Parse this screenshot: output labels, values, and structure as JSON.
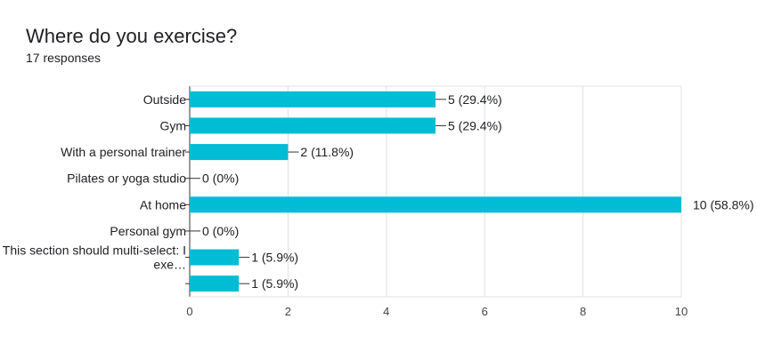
{
  "header": {
    "title": "Where do you exercise?",
    "responses": "17 responses"
  },
  "chart_data": {
    "type": "bar",
    "orientation": "horizontal",
    "categories": [
      "Outside",
      "Gym",
      "With a personal trainer",
      "Pilates or yoga studio",
      "At home",
      "Personal gym",
      "This section should multi-select: I exe…",
      ""
    ],
    "category_label_lines": [
      [
        "Outside"
      ],
      [
        "Gym"
      ],
      [
        "With a personal trainer"
      ],
      [
        "Pilates or yoga studio"
      ],
      [
        "At home"
      ],
      [
        "Personal gym"
      ],
      [
        "This section should multi-select: I",
        "exe…"
      ],
      [
        ""
      ]
    ],
    "values": [
      5,
      5,
      2,
      0,
      10,
      0,
      1,
      1
    ],
    "value_labels": [
      "5 (29.4%)",
      "5 (29.4%)",
      "2 (11.8%)",
      "0 (0%)",
      "10 (58.8%)",
      "0 (0%)",
      "1 (5.9%)",
      "1 (5.9%)"
    ],
    "xlim": [
      0,
      10
    ],
    "xticks": [
      0,
      2,
      4,
      6,
      8,
      10
    ],
    "grid": true,
    "bar_color": "#00bcd4"
  }
}
